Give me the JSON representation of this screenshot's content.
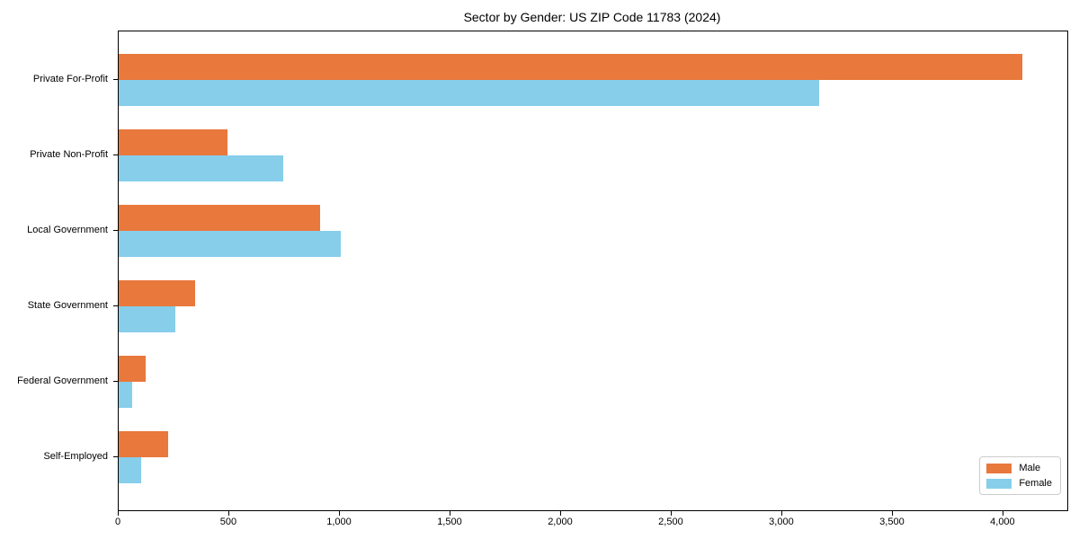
{
  "chart_data": {
    "type": "bar",
    "orientation": "horizontal",
    "title": "Sector by Gender: US ZIP Code 11783 (2024)",
    "categories": [
      "Private For-Profit",
      "Private Non-Profit",
      "Local Government",
      "State Government",
      "Federal Government",
      "Self-Employed"
    ],
    "series": [
      {
        "name": "Male",
        "color": "#E8783C",
        "values": [
          4085,
          490,
          910,
          345,
          120,
          225
        ]
      },
      {
        "name": "Female",
        "color": "#87CEEB",
        "values": [
          3165,
          745,
          1005,
          255,
          60,
          100
        ]
      }
    ],
    "xlabel": "",
    "ylabel": "",
    "xlim": [
      0,
      4289
    ],
    "x_ticks": [
      0,
      500,
      1000,
      1500,
      2000,
      2500,
      3000,
      3500,
      4000
    ],
    "x_tick_labels": [
      "0",
      "500",
      "1,000",
      "1,500",
      "2,000",
      "2,500",
      "3,000",
      "3,500",
      "4,000"
    ],
    "grid": false,
    "legend_position": "lower right"
  },
  "colors": {
    "axis": "#000000",
    "background": "#ffffff",
    "legend_border": "#cccccc"
  }
}
